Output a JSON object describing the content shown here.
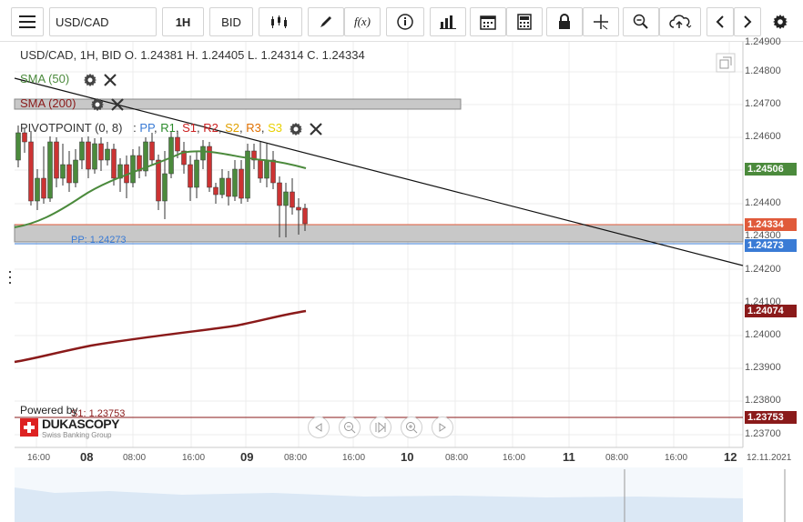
{
  "toolbar": {
    "menu_icon": "hamburger-icon",
    "symbol": "USD/CAD",
    "interval": "1H",
    "side": "BID",
    "tools": [
      "candles-icon",
      "pencil-icon",
      "function-icon",
      "info-icon",
      "bar-chart-icon",
      "calendar-icon",
      "calculator-icon",
      "lock-icon",
      "crosshair-icon",
      "zoom-icon",
      "cloud-upload-icon",
      "chevron-left-icon",
      "chevron-right-icon",
      "gear-icon"
    ],
    "fx_label": "f(x)"
  },
  "ohlc": "USD/CAD, 1H, BID    O. 1.24381 H. 1.24405 L. 1.24314 C. 1.24334",
  "indicators": {
    "sma50": "SMA (50)",
    "sma200": "SMA (200)",
    "pivot": "PIVOTPOINT (0, 8)",
    "pivot_sep": ":",
    "pivot_levels": [
      {
        "label": "PP",
        "color": "#3a7bd5"
      },
      {
        "label": "R1",
        "color": "#2a8a2a"
      },
      {
        "label": "S1",
        "color": "#cc2222"
      },
      {
        "label": "R2",
        "color": "#cc2222"
      },
      {
        "label": "S2",
        "color": "#e0a000"
      },
      {
        "label": "R3",
        "color": "#e07000"
      },
      {
        "label": "S3",
        "color": "#e8d000"
      }
    ]
  },
  "pp_label": "PP: 1.24273",
  "s1_label": "S1: 1.23753",
  "price_axis": {
    "labels": [
      "1.24800",
      "1.24700",
      "1.24600",
      "1.24400",
      "1.24300",
      "1.24200",
      "1.24100",
      "1.24000",
      "1.23900",
      "1.23800",
      "1.23700"
    ],
    "top_partial": "1.24900"
  },
  "price_tags": [
    {
      "value": "1.24506",
      "color": "#4b8a3c"
    },
    {
      "value": "1.24334",
      "color": "#e05a3a"
    },
    {
      "value": "1.24273",
      "color": "#3a7bd5"
    },
    {
      "value": "1.24074",
      "color": "#8a1a1a"
    },
    {
      "value": "1.23753",
      "color": "#8a1a1a"
    }
  ],
  "time_axis": {
    "labels": [
      "16:00",
      "08",
      "08:00",
      "16:00",
      "09",
      "08:00",
      "16:00",
      "10",
      "08:00",
      "16:00",
      "11",
      "08:00",
      "16:00",
      "12",
      "12.11.2021"
    ]
  },
  "branding": {
    "powered_by": "Powered by",
    "brand": "DUKASCOPY",
    "tagline": "Swiss Banking Group"
  },
  "colors": {
    "sma50": "#4b8a3c",
    "sma200": "#8a1a1a",
    "pp": "#3a7bd5",
    "bull": "#4b8a3c",
    "bear": "#cc3333"
  },
  "chart_data": {
    "type": "candlestick",
    "symbol": "USD/CAD",
    "timeframe": "1H",
    "ylim": [
      1.2366,
      1.249
    ],
    "last": {
      "open": 1.24381,
      "high": 1.24405,
      "low": 1.24314,
      "close": 1.24334
    },
    "sma50_last": 1.24506,
    "sma200_last": 1.24074,
    "pp": 1.24273,
    "s1": 1.23753
  }
}
